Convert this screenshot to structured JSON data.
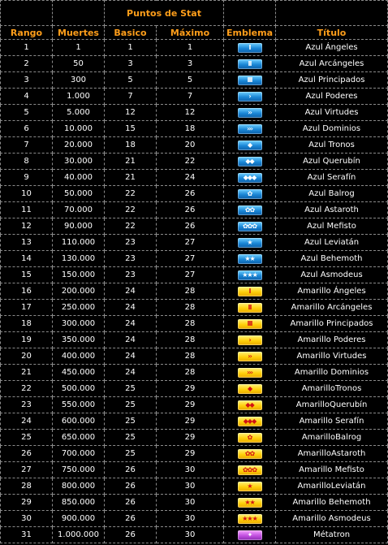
{
  "header": {
    "group_label": "Puntos de Stat",
    "columns": [
      "Rango",
      "Muertes",
      "Basico",
      "Máximo",
      "Emblema",
      "Título"
    ]
  },
  "colors": {
    "header_text": "#ff9e1a",
    "azul": "#1a86d6",
    "amarillo": "#ffcf0a",
    "metatron": "#c24fe0"
  },
  "rows": [
    {
      "rango": "1",
      "muertes": "1",
      "basico": "1",
      "maximo": "1",
      "emblema": {
        "color": "azul",
        "icon": "bar-1-icon",
        "glyph": "I"
      },
      "titulo": "Azul Ángeles"
    },
    {
      "rango": "2",
      "muertes": "50",
      "basico": "3",
      "maximo": "3",
      "emblema": {
        "color": "azul",
        "icon": "bar-2-icon",
        "glyph": "II"
      },
      "titulo": "Azul Arcángeles"
    },
    {
      "rango": "3",
      "muertes": "300",
      "basico": "5",
      "maximo": "5",
      "emblema": {
        "color": "azul",
        "icon": "bar-3-icon",
        "glyph": "III"
      },
      "titulo": "Azul Principados"
    },
    {
      "rango": "4",
      "muertes": "1.000",
      "basico": "7",
      "maximo": "7",
      "emblema": {
        "color": "azul",
        "icon": "chevron-1-icon",
        "glyph": "›"
      },
      "titulo": "Azul Poderes"
    },
    {
      "rango": "5",
      "muertes": "5.000",
      "basico": "12",
      "maximo": "12",
      "emblema": {
        "color": "azul",
        "icon": "chevron-2-icon",
        "glyph": "››"
      },
      "titulo": "Azul Virtudes"
    },
    {
      "rango": "6",
      "muertes": "10.000",
      "basico": "15",
      "maximo": "18",
      "emblema": {
        "color": "azul",
        "icon": "chevron-3-icon",
        "glyph": "›››"
      },
      "titulo": "Azul Dominios"
    },
    {
      "rango": "7",
      "muertes": "20.000",
      "basico": "18",
      "maximo": "20",
      "emblema": {
        "color": "azul",
        "icon": "diamond-1-icon",
        "glyph": "◆"
      },
      "titulo": "Azul Tronos"
    },
    {
      "rango": "8",
      "muertes": "30.000",
      "basico": "21",
      "maximo": "22",
      "emblema": {
        "color": "azul",
        "icon": "diamond-2-icon",
        "glyph": "◆◆"
      },
      "titulo": "Azul Querubín"
    },
    {
      "rango": "9",
      "muertes": "40.000",
      "basico": "21",
      "maximo": "24",
      "emblema": {
        "color": "azul",
        "icon": "diamond-3-icon",
        "glyph": "◆◆◆"
      },
      "titulo": "Azul Serafín"
    },
    {
      "rango": "10",
      "muertes": "50.000",
      "basico": "22",
      "maximo": "26",
      "emblema": {
        "color": "azul",
        "icon": "flower-1-icon",
        "glyph": "✿"
      },
      "titulo": "Azul Balrog"
    },
    {
      "rango": "11",
      "muertes": "70.000",
      "basico": "22",
      "maximo": "26",
      "emblema": {
        "color": "azul",
        "icon": "flower-2-icon",
        "glyph": "✿✿"
      },
      "titulo": "Azul Astaroth"
    },
    {
      "rango": "12",
      "muertes": "90.000",
      "basico": "22",
      "maximo": "26",
      "emblema": {
        "color": "azul",
        "icon": "flower-3-icon",
        "glyph": "✿✿✿"
      },
      "titulo": "Azul Mefisto"
    },
    {
      "rango": "13",
      "muertes": "110.000",
      "basico": "23",
      "maximo": "27",
      "emblema": {
        "color": "azul",
        "icon": "star-1-icon",
        "glyph": "★"
      },
      "titulo": "Azul Leviatán"
    },
    {
      "rango": "14",
      "muertes": "130.000",
      "basico": "23",
      "maximo": "27",
      "emblema": {
        "color": "azul",
        "icon": "star-2-icon",
        "glyph": "★★"
      },
      "titulo": "Azul Behemoth"
    },
    {
      "rango": "15",
      "muertes": "150.000",
      "basico": "23",
      "maximo": "27",
      "emblema": {
        "color": "azul",
        "icon": "star-3-icon",
        "glyph": "★★★"
      },
      "titulo": "Azul Asmodeus"
    },
    {
      "rango": "16",
      "muertes": "200.000",
      "basico": "24",
      "maximo": "28",
      "emblema": {
        "color": "amarillo",
        "icon": "bar-1-icon",
        "glyph": "I"
      },
      "titulo": "Amarillo Ángeles"
    },
    {
      "rango": "17",
      "muertes": "250.000",
      "basico": "24",
      "maximo": "28",
      "emblema": {
        "color": "amarillo",
        "icon": "bar-2-icon",
        "glyph": "II"
      },
      "titulo": "Amarillo Arcángeles"
    },
    {
      "rango": "18",
      "muertes": "300.000",
      "basico": "24",
      "maximo": "28",
      "emblema": {
        "color": "amarillo",
        "icon": "bar-3-icon",
        "glyph": "III"
      },
      "titulo": "Amarillo Principados"
    },
    {
      "rango": "19",
      "muertes": "350.000",
      "basico": "24",
      "maximo": "28",
      "emblema": {
        "color": "amarillo",
        "icon": "chevron-1-icon",
        "glyph": "›"
      },
      "titulo": "Amarillo Poderes"
    },
    {
      "rango": "20",
      "muertes": "400.000",
      "basico": "24",
      "maximo": "28",
      "emblema": {
        "color": "amarillo",
        "icon": "chevron-2-icon",
        "glyph": "››"
      },
      "titulo": "Amarillo Virtudes"
    },
    {
      "rango": "21",
      "muertes": "450.000",
      "basico": "24",
      "maximo": "28",
      "emblema": {
        "color": "amarillo",
        "icon": "chevron-3-icon",
        "glyph": "›››"
      },
      "titulo": "Amarillo Dominios"
    },
    {
      "rango": "22",
      "muertes": "500.000",
      "basico": "25",
      "maximo": "29",
      "emblema": {
        "color": "amarillo",
        "icon": "diamond-1-icon",
        "glyph": "◆"
      },
      "titulo": "AmarilloTronos"
    },
    {
      "rango": "23",
      "muertes": "550.000",
      "basico": "25",
      "maximo": "29",
      "emblema": {
        "color": "amarillo",
        "icon": "diamond-2-icon",
        "glyph": "◆◆"
      },
      "titulo": "AmarilloQuerubín"
    },
    {
      "rango": "24",
      "muertes": "600.000",
      "basico": "25",
      "maximo": "29",
      "emblema": {
        "color": "amarillo",
        "icon": "diamond-3-icon",
        "glyph": "◆◆◆"
      },
      "titulo": "Amarillo Serafín"
    },
    {
      "rango": "25",
      "muertes": "650.000",
      "basico": "25",
      "maximo": "29",
      "emblema": {
        "color": "amarillo",
        "icon": "flower-1-icon",
        "glyph": "✿"
      },
      "titulo": "AmarilloBalrog"
    },
    {
      "rango": "26",
      "muertes": "700.000",
      "basico": "25",
      "maximo": "29",
      "emblema": {
        "color": "amarillo",
        "icon": "flower-2-icon",
        "glyph": "✿✿"
      },
      "titulo": "AmarilloAstaroth"
    },
    {
      "rango": "27",
      "muertes": "750.000",
      "basico": "26",
      "maximo": "30",
      "emblema": {
        "color": "amarillo",
        "icon": "flower-3-icon",
        "glyph": "✿✿✿"
      },
      "titulo": "Amarillo Mefisto"
    },
    {
      "rango": "28",
      "muertes": "800.000",
      "basico": "26",
      "maximo": "30",
      "emblema": {
        "color": "amarillo",
        "icon": "star-1-icon",
        "glyph": "★"
      },
      "titulo": "AmarilloLeviatán"
    },
    {
      "rango": "29",
      "muertes": "850.000",
      "basico": "26",
      "maximo": "30",
      "emblema": {
        "color": "amarillo",
        "icon": "star-2-icon",
        "glyph": "★★"
      },
      "titulo": "Amarillo Behemoth"
    },
    {
      "rango": "30",
      "muertes": "900.000",
      "basico": "26",
      "maximo": "30",
      "emblema": {
        "color": "amarillo",
        "icon": "star-3-icon",
        "glyph": "★★★"
      },
      "titulo": "Amarillo Asmodeus"
    },
    {
      "rango": "31",
      "muertes": "1.000.000",
      "basico": "26",
      "maximo": "30",
      "emblema": {
        "color": "metatron",
        "icon": "metatron-star-icon",
        "glyph": "✦"
      },
      "titulo": "Métatron"
    }
  ]
}
